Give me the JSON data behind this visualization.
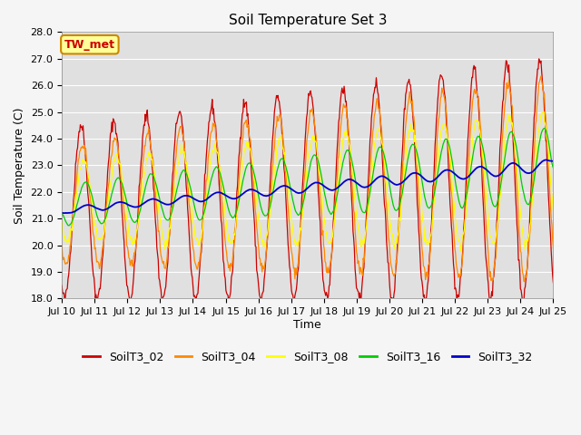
{
  "title": "Soil Temperature Set 3",
  "xlabel": "Time",
  "ylabel": "Soil Temperature (C)",
  "ylim": [
    18.0,
    28.0
  ],
  "xlim": [
    0,
    360
  ],
  "yticks": [
    18.0,
    19.0,
    20.0,
    21.0,
    22.0,
    23.0,
    24.0,
    25.0,
    26.0,
    27.0,
    28.0
  ],
  "xtick_positions": [
    0,
    24,
    48,
    72,
    96,
    120,
    144,
    168,
    192,
    216,
    240,
    264,
    288,
    312,
    336,
    360
  ],
  "xtick_labels": [
    "Jul 10",
    "Jul 11",
    "Jul 12",
    "Jul 13",
    "Jul 14",
    "Jul 15",
    "Jul 16",
    "Jul 17",
    "Jul 18",
    "Jul 19",
    "Jul 20",
    "Jul 21",
    "Jul 22",
    "Jul 23",
    "Jul 24",
    "Jul 25"
  ],
  "series_colors": {
    "SoilT3_02": "#cc0000",
    "SoilT3_04": "#ff8800",
    "SoilT3_08": "#ffff00",
    "SoilT3_16": "#00cc00",
    "SoilT3_32": "#0000cc"
  },
  "annotation_text": "TW_met",
  "annotation_bg": "#ffff99",
  "annotation_border": "#cc8800",
  "plot_bg_color": "#e0e0e0",
  "fig_bg_color": "#f5f5f5",
  "grid_color": "#ffffff",
  "title_fontsize": 11,
  "axis_fontsize": 9,
  "tick_fontsize": 8,
  "legend_fontsize": 9
}
